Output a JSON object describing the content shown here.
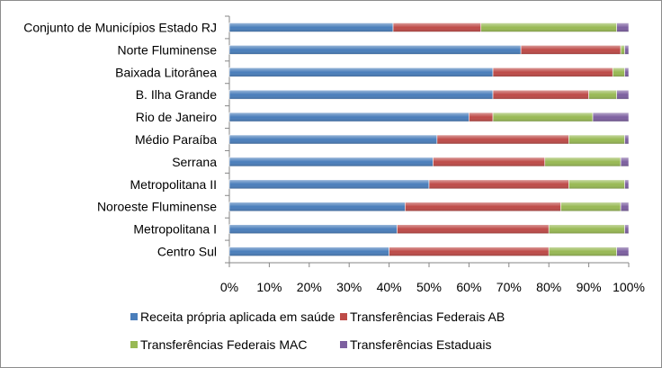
{
  "chart_data": {
    "type": "bar",
    "orientation": "horizontal",
    "stacked": "percent",
    "categories": [
      "Conjunto de Municípios Estado RJ",
      "Norte Fluminense",
      "Baixada Litorânea",
      "B. Ilha Grande",
      "Rio de Janeiro",
      "Médio Paraíba",
      "Serrana",
      "Metropolitana II",
      "Noroeste Fluminense",
      "Metropolitana I",
      "Centro Sul"
    ],
    "series": [
      {
        "name": "Receita própria aplicada em saúde",
        "color": "#4a7ebb",
        "values": [
          41,
          73,
          66,
          66,
          60,
          52,
          51,
          50,
          44,
          42,
          40
        ]
      },
      {
        "name": "Transferências Federais AB",
        "color": "#be4b48",
        "values": [
          22,
          25,
          30,
          24,
          6,
          33,
          28,
          35,
          39,
          38,
          40
        ]
      },
      {
        "name": "Transferências Federais MAC",
        "color": "#98b954",
        "values": [
          34,
          1,
          3,
          7,
          25,
          14,
          19,
          14,
          15,
          19,
          17
        ]
      },
      {
        "name": "Transferências Estaduais",
        "color": "#7d60a0",
        "values": [
          3,
          1,
          1,
          3,
          9,
          1,
          2,
          1,
          2,
          1,
          3
        ]
      }
    ],
    "xlim": [
      0,
      100
    ],
    "x_ticks": [
      "0%",
      "10%",
      "20%",
      "30%",
      "40%",
      "50%",
      "60%",
      "70%",
      "80%",
      "90%",
      "100%"
    ],
    "grid": false,
    "legend_position": "bottom"
  }
}
